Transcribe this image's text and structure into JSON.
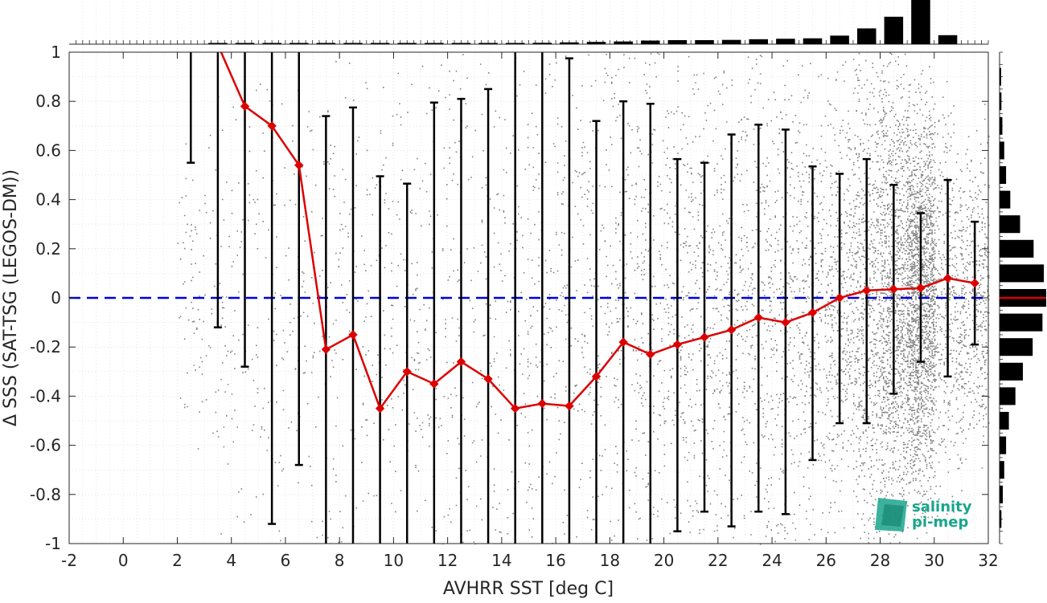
{
  "chart_data": {
    "type": "line",
    "xlabel": "AVHRR SST [deg C]",
    "ylabel": "Δ SSS (SAT-TSG (LEGOS-DM))",
    "xlim": [
      -2,
      32
    ],
    "ylim": [
      -1,
      1
    ],
    "xticks": [
      -2,
      0,
      2,
      4,
      6,
      8,
      10,
      12,
      14,
      16,
      18,
      20,
      22,
      24,
      26,
      28,
      30,
      32
    ],
    "yticks": [
      -1,
      -0.8,
      -0.6,
      -0.4,
      -0.2,
      0,
      0.2,
      0.4,
      0.6,
      0.8,
      1
    ],
    "grid": true,
    "reference_line": {
      "y": 0,
      "color": "#0000dd",
      "style": "dashed"
    },
    "series": [
      {
        "type": "line-markers",
        "color": "#dd0000",
        "x": [
          3.5,
          4.5,
          5.5,
          6.5,
          7.5,
          8.5,
          9.5,
          10.5,
          11.5,
          12.5,
          13.5,
          14.5,
          15.5,
          16.5,
          17.5,
          18.5,
          19.5,
          20.5,
          21.5,
          22.5,
          23.5,
          24.5,
          25.5,
          26.5,
          27.5,
          28.5,
          29.5,
          30.5,
          31.5
        ],
        "y": [
          1.03,
          0.78,
          0.7,
          0.54,
          -0.21,
          -0.15,
          -0.45,
          -0.3,
          -0.35,
          -0.26,
          -0.33,
          -0.45,
          -0.43,
          -0.44,
          -0.32,
          -0.18,
          -0.23,
          -0.19,
          -0.16,
          -0.13,
          -0.08,
          -0.1,
          -0.06,
          0.0,
          0.03,
          0.035,
          0.04,
          0.08,
          0.06
        ]
      }
    ],
    "error_bars": {
      "color": "#000000",
      "x": [
        2.5,
        3.5,
        4.5,
        5.5,
        6.5,
        7.5,
        8.5,
        9.5,
        10.5,
        11.5,
        12.5,
        13.5,
        14.5,
        15.5,
        16.5,
        17.5,
        18.5,
        19.5,
        20.5,
        21.5,
        22.5,
        23.5,
        24.5,
        25.5,
        26.5,
        27.5,
        28.5,
        29.5,
        30.5,
        31.5
      ],
      "low": [
        0.55,
        -0.12,
        -0.28,
        -0.92,
        -0.68,
        -1.1,
        -1.1,
        -1.1,
        -1.1,
        -1.1,
        -1.1,
        -1.1,
        -1.1,
        -1.1,
        -1.1,
        -1.1,
        -1.1,
        -1.1,
        -0.95,
        -0.87,
        -0.93,
        -0.87,
        -0.88,
        -0.66,
        -0.51,
        -0.51,
        -0.39,
        -0.26,
        -0.32,
        -0.19
      ],
      "high": [
        1.1,
        1.1,
        1.1,
        1.1,
        1.1,
        0.74,
        0.775,
        0.495,
        0.465,
        0.795,
        0.81,
        0.85,
        1.1,
        1.1,
        0.975,
        0.72,
        0.8,
        0.79,
        0.565,
        0.55,
        0.665,
        0.705,
        0.685,
        0.535,
        0.505,
        0.565,
        0.46,
        0.345,
        0.48,
        0.31
      ]
    },
    "scatter_color": "#808080",
    "histogram_top": {
      "x": [
        3.5,
        4.5,
        5.5,
        6.5,
        7.5,
        8.5,
        9.5,
        10.5,
        11.5,
        12.5,
        13.5,
        14.5,
        15.5,
        16.5,
        17.5,
        18.5,
        19.5,
        20.5,
        21.5,
        22.5,
        23.5,
        24.5,
        25.5,
        26.5,
        27.5,
        28.5,
        29.5,
        30.5
      ],
      "values": [
        0.002,
        0.003,
        0.004,
        0.005,
        0.006,
        0.008,
        0.01,
        0.012,
        0.015,
        0.018,
        0.02,
        0.024,
        0.03,
        0.04,
        0.05,
        0.06,
        0.08,
        0.09,
        0.09,
        0.095,
        0.11,
        0.12,
        0.13,
        0.19,
        0.35,
        0.61,
        1.0,
        0.2
      ]
    },
    "histogram_right": {
      "y": [
        0.9,
        0.8,
        0.7,
        0.6,
        0.5,
        0.4,
        0.3,
        0.2,
        0.1,
        0.0,
        -0.1,
        -0.2,
        -0.3,
        -0.4,
        -0.5,
        -0.6,
        -0.7,
        -0.8,
        -0.9
      ],
      "values": [
        0.03,
        0.04,
        0.06,
        0.1,
        0.14,
        0.23,
        0.44,
        0.73,
        0.95,
        1.0,
        0.92,
        0.71,
        0.5,
        0.34,
        0.2,
        0.14,
        0.1,
        0.07,
        0.04
      ],
      "median_marker_color": "#dd0000"
    }
  },
  "logo": {
    "line1": "salinity",
    "line2": "pi-mep"
  }
}
